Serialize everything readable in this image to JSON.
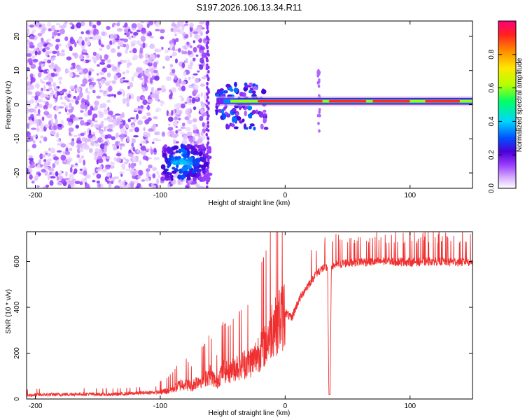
{
  "title": "S197.2026.106.13.34.R11",
  "chart_data": [
    {
      "type": "heatmap",
      "id": "spectrogram",
      "xlabel": "Height of straight line (km)",
      "ylabel": "Frequency (Hz)",
      "xlim": [
        -207,
        150
      ],
      "ylim": [
        -24.5,
        24.5
      ],
      "xticks": [
        -200,
        -100,
        0,
        100
      ],
      "yticks": [
        -20,
        -10,
        0,
        10,
        20
      ],
      "colorbar": {
        "label": "Normalized spectral amplitude",
        "range": [
          0,
          1
        ],
        "ticks": [
          "0.0",
          "0.2",
          "0.4",
          "0.6",
          "0.8"
        ],
        "tick_values": [
          0,
          0.2,
          0.4,
          0.6,
          0.8
        ],
        "colors": [
          "#ffffff",
          "#d9b3ff",
          "#9a3cff",
          "#4a00d8",
          "#0050ff",
          "#00d6ff",
          "#00ff66",
          "#b6ff00",
          "#ffe600",
          "#ff8c00",
          "#ff2020",
          "#ff007a"
        ]
      },
      "features": {
        "band_freq_hz": 1,
        "band_start_km": -55,
        "band_end_km": 150,
        "cluster_center_km": -82,
        "cluster_freq_hz": -17,
        "vertical_stripe_km": [
          -62,
          27
        ]
      }
    },
    {
      "type": "line",
      "id": "snr",
      "xlabel": "Height of straight line (km)",
      "ylabel": "SNR (10 * v/v)",
      "xlim": [
        -207,
        150
      ],
      "ylim": [
        0,
        730
      ],
      "xticks": [
        -200,
        -100,
        0,
        100
      ],
      "yticks": [
        0,
        200,
        400,
        600
      ],
      "color": "#f03030",
      "series": [
        {
          "name": "SNR",
          "x": [
            -207,
            -200,
            -180,
            -160,
            -140,
            -120,
            -110,
            -100,
            -95,
            -90,
            -85,
            -80,
            -75,
            -70,
            -65,
            -60,
            -55,
            -50,
            -45,
            -40,
            -35,
            -30,
            -25,
            -20,
            -15,
            -12,
            -10,
            -5,
            0,
            5,
            10,
            15,
            20,
            25,
            30,
            34,
            35,
            36,
            37,
            40,
            45,
            50,
            60,
            70,
            80,
            90,
            100,
            110,
            120,
            130,
            140,
            150
          ],
          "values": [
            15,
            18,
            20,
            22,
            20,
            25,
            28,
            30,
            35,
            45,
            60,
            70,
            55,
            80,
            90,
            110,
            70,
            130,
            120,
            140,
            150,
            160,
            170,
            220,
            250,
            290,
            330,
            350,
            380,
            350,
            420,
            470,
            510,
            550,
            570,
            575,
            20,
            20,
            580,
            585,
            590,
            595,
            600,
            598,
            602,
            600,
            598,
            600,
            602,
            600,
            598,
            600
          ]
        }
      ]
    }
  ]
}
